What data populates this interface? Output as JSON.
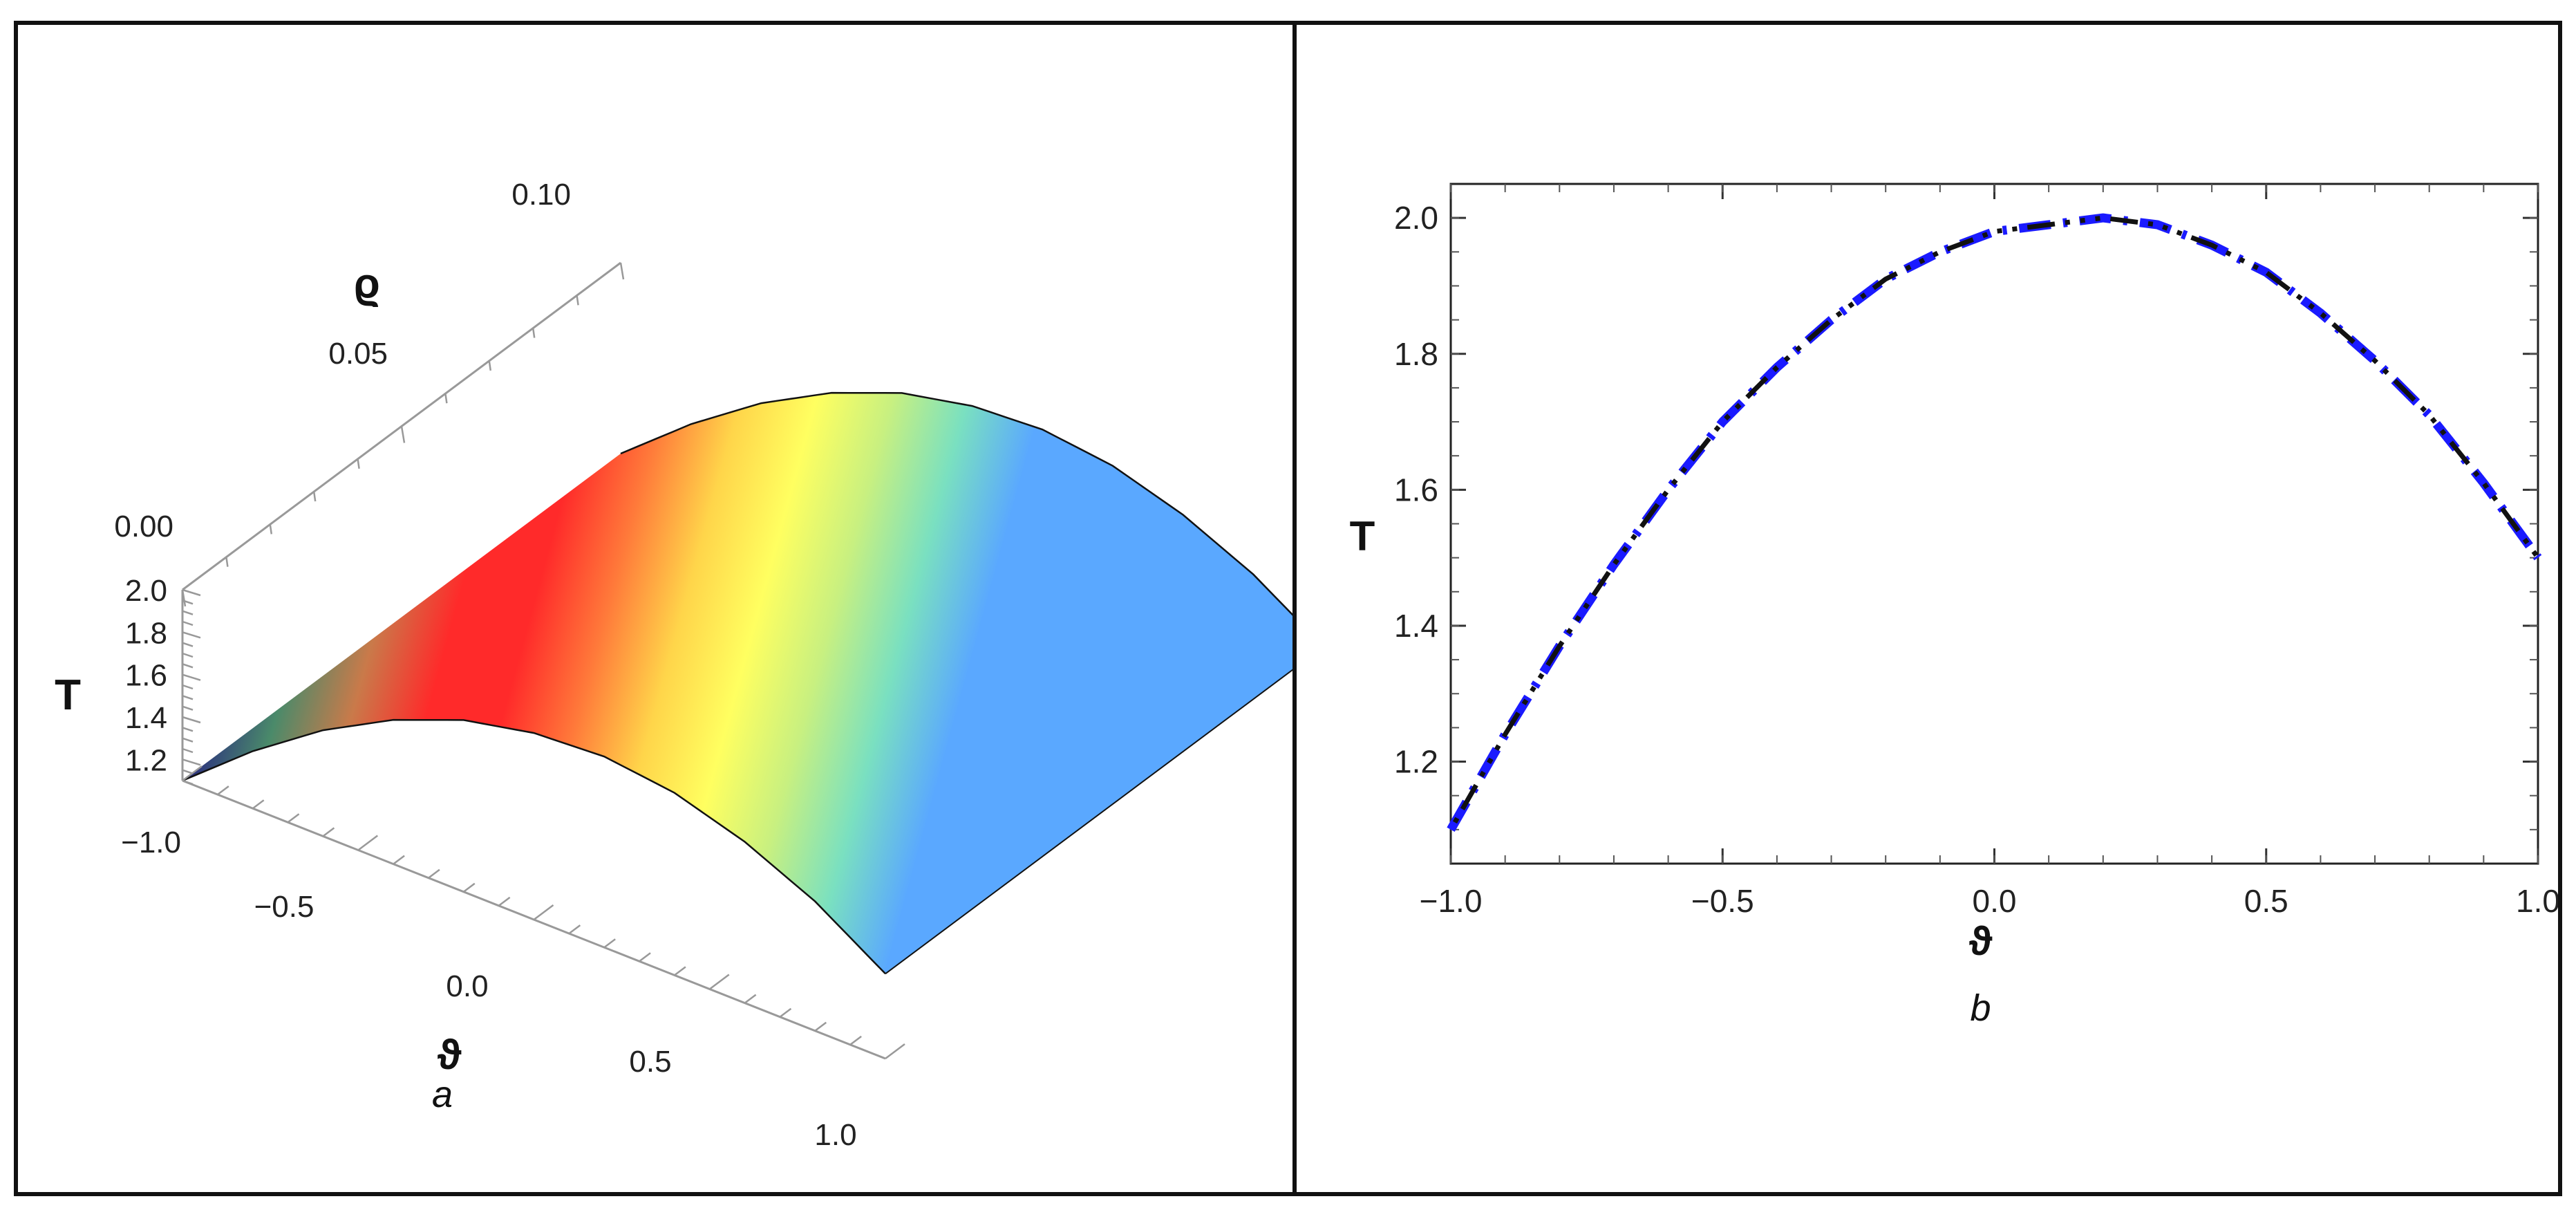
{
  "chart_data": [
    {
      "type": "surface",
      "panel_label": "a",
      "zlabel": "T",
      "ylabel": "ϱ",
      "xlabel": "ϑ",
      "x_ticks": [
        "−1.0",
        "−0.5",
        "0.0",
        "0.5",
        "1.0"
      ],
      "y_ticks": [
        "0.00",
        "0.05",
        "0.10"
      ],
      "z_ticks": [
        "1.2",
        "1.4",
        "1.6",
        "1.8",
        "2.0"
      ],
      "x_range": [
        -1.0,
        1.0
      ],
      "y_range": [
        0.0,
        0.1
      ],
      "z_range": [
        1.1,
        2.0
      ],
      "profile": {
        "x": [
          -1.0,
          -0.8,
          -0.6,
          -0.4,
          -0.2,
          0.0,
          0.2,
          0.4,
          0.6,
          0.8,
          1.0
        ],
        "T": [
          1.1,
          1.37,
          1.6,
          1.78,
          1.91,
          1.98,
          2.0,
          1.96,
          1.86,
          1.71,
          1.5
        ]
      },
      "colormap": [
        "#2a2a80",
        "#4a8a6a",
        "#c97a4a",
        "#ff2a2a",
        "#ff2a2a",
        "#ff7a3a",
        "#ffd54a",
        "#ffff60",
        "#c8f080",
        "#7ae0c0",
        "#5aa8ff"
      ],
      "grid": false
    },
    {
      "type": "line",
      "panel_label": "b",
      "xlabel": "ϑ",
      "ylabel": "T",
      "xlim": [
        -1.0,
        1.0
      ],
      "ylim": [
        1.05,
        2.05
      ],
      "x_ticks": [
        "−1.0",
        "−0.5",
        "0.0",
        "0.5",
        "1.0"
      ],
      "y_ticks": [
        "1.2",
        "1.4",
        "1.6",
        "1.8",
        "2.0"
      ],
      "series": [
        {
          "color": "#1a1aff",
          "dash": "dash-dot",
          "x": [
            -1.0,
            -0.9,
            -0.8,
            -0.7,
            -0.6,
            -0.5,
            -0.4,
            -0.3,
            -0.2,
            -0.1,
            0.0,
            0.1,
            0.2,
            0.3,
            0.4,
            0.5,
            0.6,
            0.7,
            0.8,
            0.9,
            1.0
          ],
          "y": [
            1.1,
            1.24,
            1.37,
            1.49,
            1.6,
            1.7,
            1.78,
            1.85,
            1.91,
            1.95,
            1.98,
            1.99,
            2.0,
            1.99,
            1.96,
            1.92,
            1.86,
            1.79,
            1.71,
            1.61,
            1.5
          ]
        },
        {
          "color": "#111111",
          "dash": "dot-dot-dash",
          "x": [
            -1.0,
            -0.9,
            -0.8,
            -0.7,
            -0.6,
            -0.5,
            -0.4,
            -0.3,
            -0.2,
            -0.1,
            0.0,
            0.1,
            0.2,
            0.3,
            0.4,
            0.5,
            0.6,
            0.7,
            0.8,
            0.9,
            1.0
          ],
          "y": [
            1.1,
            1.24,
            1.37,
            1.49,
            1.6,
            1.7,
            1.78,
            1.85,
            1.91,
            1.95,
            1.98,
            1.99,
            2.0,
            1.99,
            1.96,
            1.92,
            1.86,
            1.79,
            1.71,
            1.61,
            1.5
          ]
        }
      ],
      "grid": false
    }
  ]
}
